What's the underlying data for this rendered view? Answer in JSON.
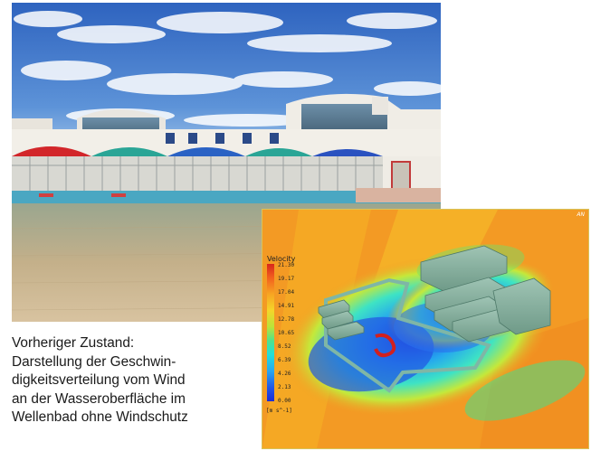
{
  "caption": {
    "lines": [
      "Vorheriger Zustand:",
      "Darstellung der Geschwin-",
      "digkeitsverteilung vom Wind",
      "an der Wasseroberfläche im",
      "Wellenbad ohne Windschutz"
    ]
  },
  "simulation": {
    "legend_title": "Velocity",
    "ticks": [
      "21.30",
      "19.17",
      "17.04",
      "14.91",
      "12.78",
      "10.65",
      "8.52",
      "6.39",
      "4.26",
      "2.13",
      "0.00"
    ],
    "unit": "[m s^-1]",
    "corner_mark": "AN",
    "colors": {
      "background": "#f39a24",
      "high": "#d7261c",
      "mid": "#4fe28c",
      "low": "#1a2bd6"
    }
  },
  "photo": {
    "colors": {
      "sky": "#3b73c8",
      "pool": "#5fb3c9",
      "deck": "#bda885"
    }
  }
}
